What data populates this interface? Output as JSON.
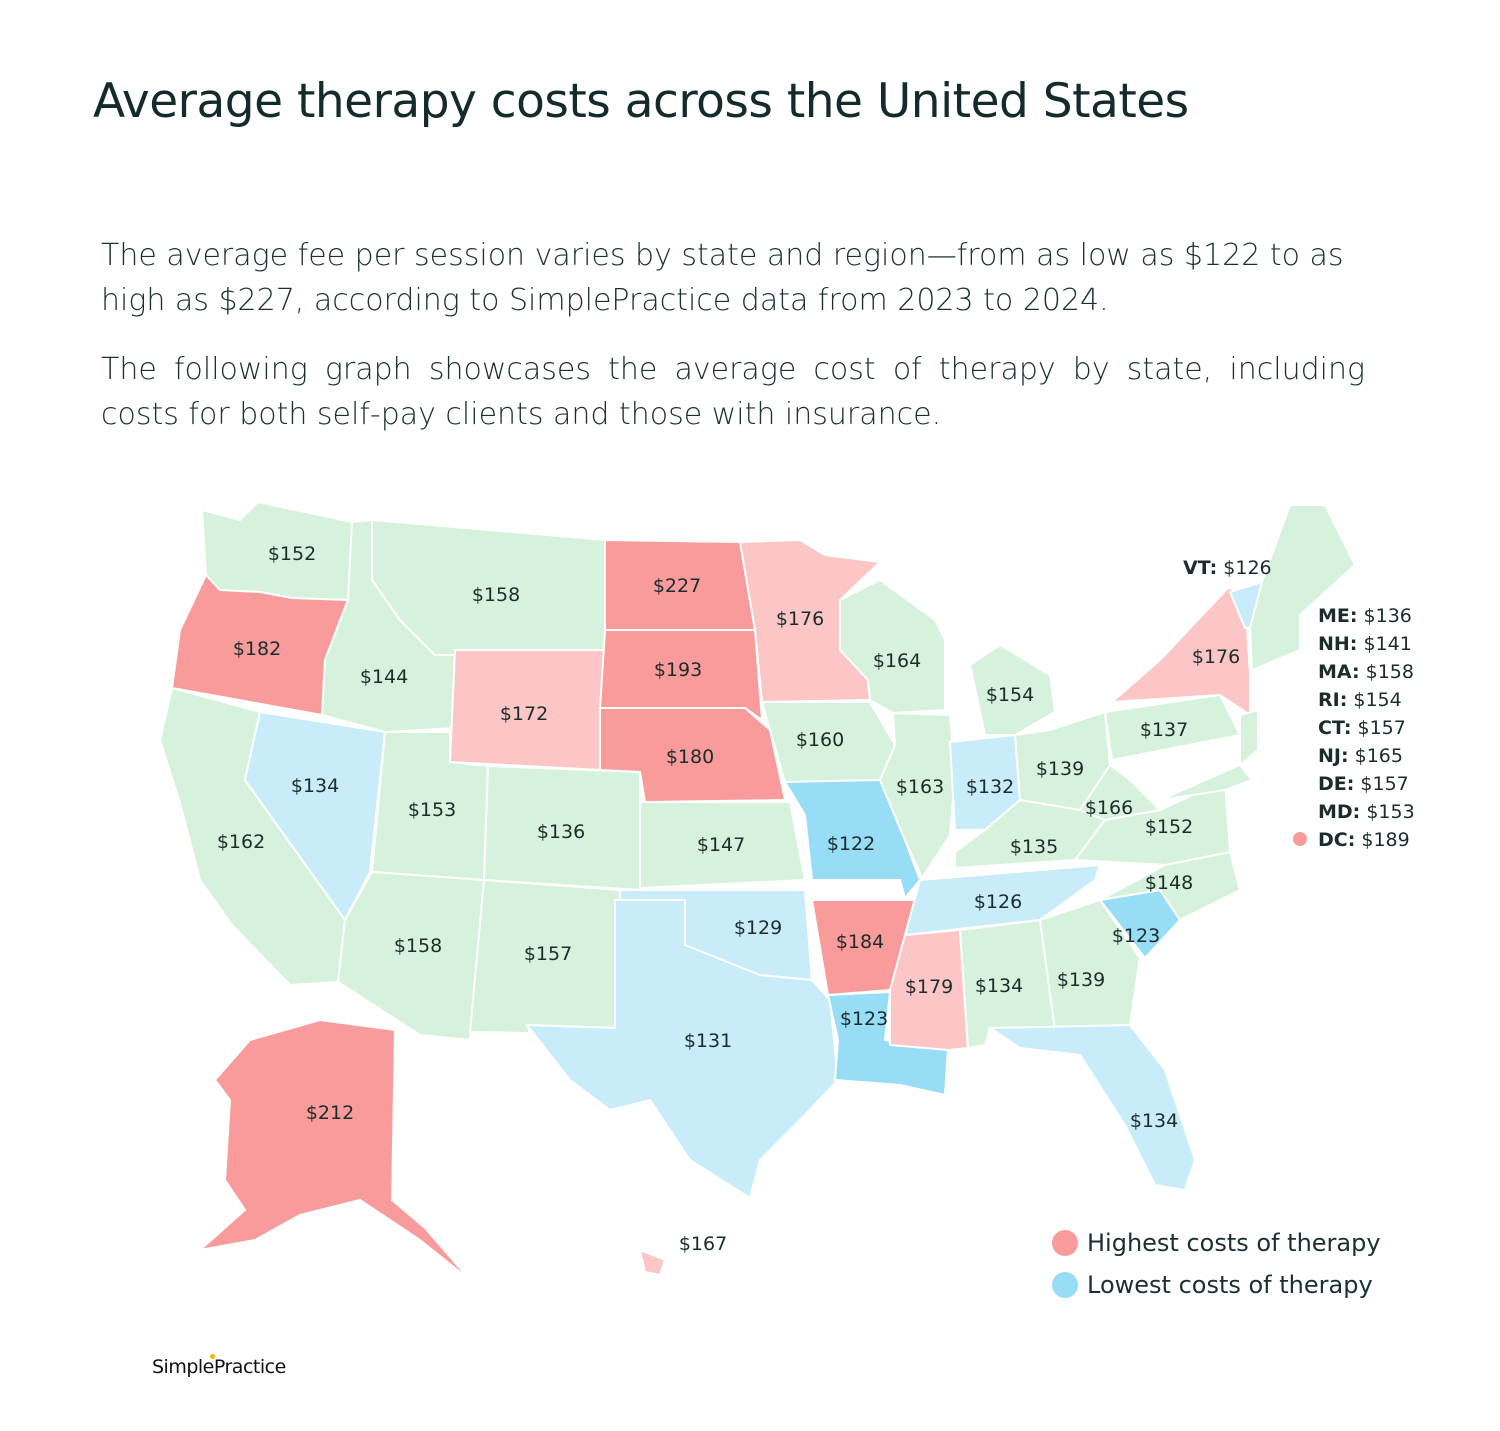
{
  "title": "Average therapy costs across the United States",
  "paragraphs": [
    "The average fee per session varies by state and region—from as low as $122 to as high as $227, according to SimplePractice data from 2023 to 2024.",
    "The following graph showcases the average cost of therapy by state, including costs for both self-pay clients and those with insurance."
  ],
  "colors": {
    "base": "#d6f2dc",
    "high_strong": "#f99b9b",
    "high_light": "#fcc6c6",
    "low_strong": "#97ddf5",
    "low_light": "#c8ecf9"
  },
  "states": {
    "WA": {
      "value": "$152",
      "tier": "base"
    },
    "OR": {
      "value": "$182",
      "tier": "high_strong"
    },
    "CA": {
      "value": "$162",
      "tier": "base"
    },
    "NV": {
      "value": "$134",
      "tier": "low_light"
    },
    "ID": {
      "value": "$144",
      "tier": "base"
    },
    "MT": {
      "value": "$158",
      "tier": "base"
    },
    "WY": {
      "value": "$172",
      "tier": "high_light"
    },
    "UT": {
      "value": "$153",
      "tier": "base"
    },
    "AZ": {
      "value": "$158",
      "tier": "base"
    },
    "CO": {
      "value": "$136",
      "tier": "base"
    },
    "NM": {
      "value": "$157",
      "tier": "base"
    },
    "ND": {
      "value": "$227",
      "tier": "high_strong"
    },
    "SD": {
      "value": "$193",
      "tier": "high_strong"
    },
    "NE": {
      "value": "$180",
      "tier": "high_strong"
    },
    "KS": {
      "value": "$147",
      "tier": "base"
    },
    "OK": {
      "value": "$129",
      "tier": "low_light"
    },
    "TX": {
      "value": "$131",
      "tier": "low_light"
    },
    "MN": {
      "value": "$176",
      "tier": "high_light"
    },
    "IA": {
      "value": "$160",
      "tier": "base"
    },
    "MO": {
      "value": "$122",
      "tier": "low_strong"
    },
    "AR": {
      "value": "$184",
      "tier": "high_strong"
    },
    "LA": {
      "value": "$123",
      "tier": "low_strong"
    },
    "WI": {
      "value": "$164",
      "tier": "base"
    },
    "IL": {
      "value": "$163",
      "tier": "base"
    },
    "MS": {
      "value": "$179",
      "tier": "high_light"
    },
    "MI": {
      "value": "$154",
      "tier": "base"
    },
    "IN": {
      "value": "$132",
      "tier": "low_light"
    },
    "OH": {
      "value": "$139",
      "tier": "base"
    },
    "KY": {
      "value": "$135",
      "tier": "base"
    },
    "TN": {
      "value": "$126",
      "tier": "low_light"
    },
    "AL": {
      "value": "$134",
      "tier": "base"
    },
    "GA": {
      "value": "$139",
      "tier": "base"
    },
    "FL": {
      "value": "$134",
      "tier": "low_light"
    },
    "SC": {
      "value": "$123",
      "tier": "low_strong"
    },
    "NC": {
      "value": "$148",
      "tier": "base"
    },
    "VA": {
      "value": "$152",
      "tier": "base"
    },
    "WV": {
      "value": "$166",
      "tier": "base"
    },
    "PA": {
      "value": "$137",
      "tier": "base"
    },
    "NY": {
      "value": "$176",
      "tier": "high_light"
    },
    "AK": {
      "value": "$212",
      "tier": "high_strong"
    },
    "HI": {
      "value": "$167",
      "tier": "high_light"
    }
  },
  "vt_label": {
    "code": "VT:",
    "value": "$126"
  },
  "side_list": [
    {
      "code": "ME:",
      "value": "$136"
    },
    {
      "code": "NH:",
      "value": "$141"
    },
    {
      "code": "MA:",
      "value": "$158"
    },
    {
      "code": "RI:",
      "value": "$154"
    },
    {
      "code": "CT:",
      "value": "$157"
    },
    {
      "code": "NJ:",
      "value": "$165"
    },
    {
      "code": "DE:",
      "value": "$157"
    },
    {
      "code": "MD:",
      "value": "$153"
    },
    {
      "code": "DC:",
      "value": "$189"
    }
  ],
  "legend": [
    {
      "label": "Highest costs of therapy",
      "color": "#f99b9b"
    },
    {
      "label": "Lowest costs of therapy",
      "color": "#97ddf5"
    }
  ],
  "brand": "SimplePractice"
}
